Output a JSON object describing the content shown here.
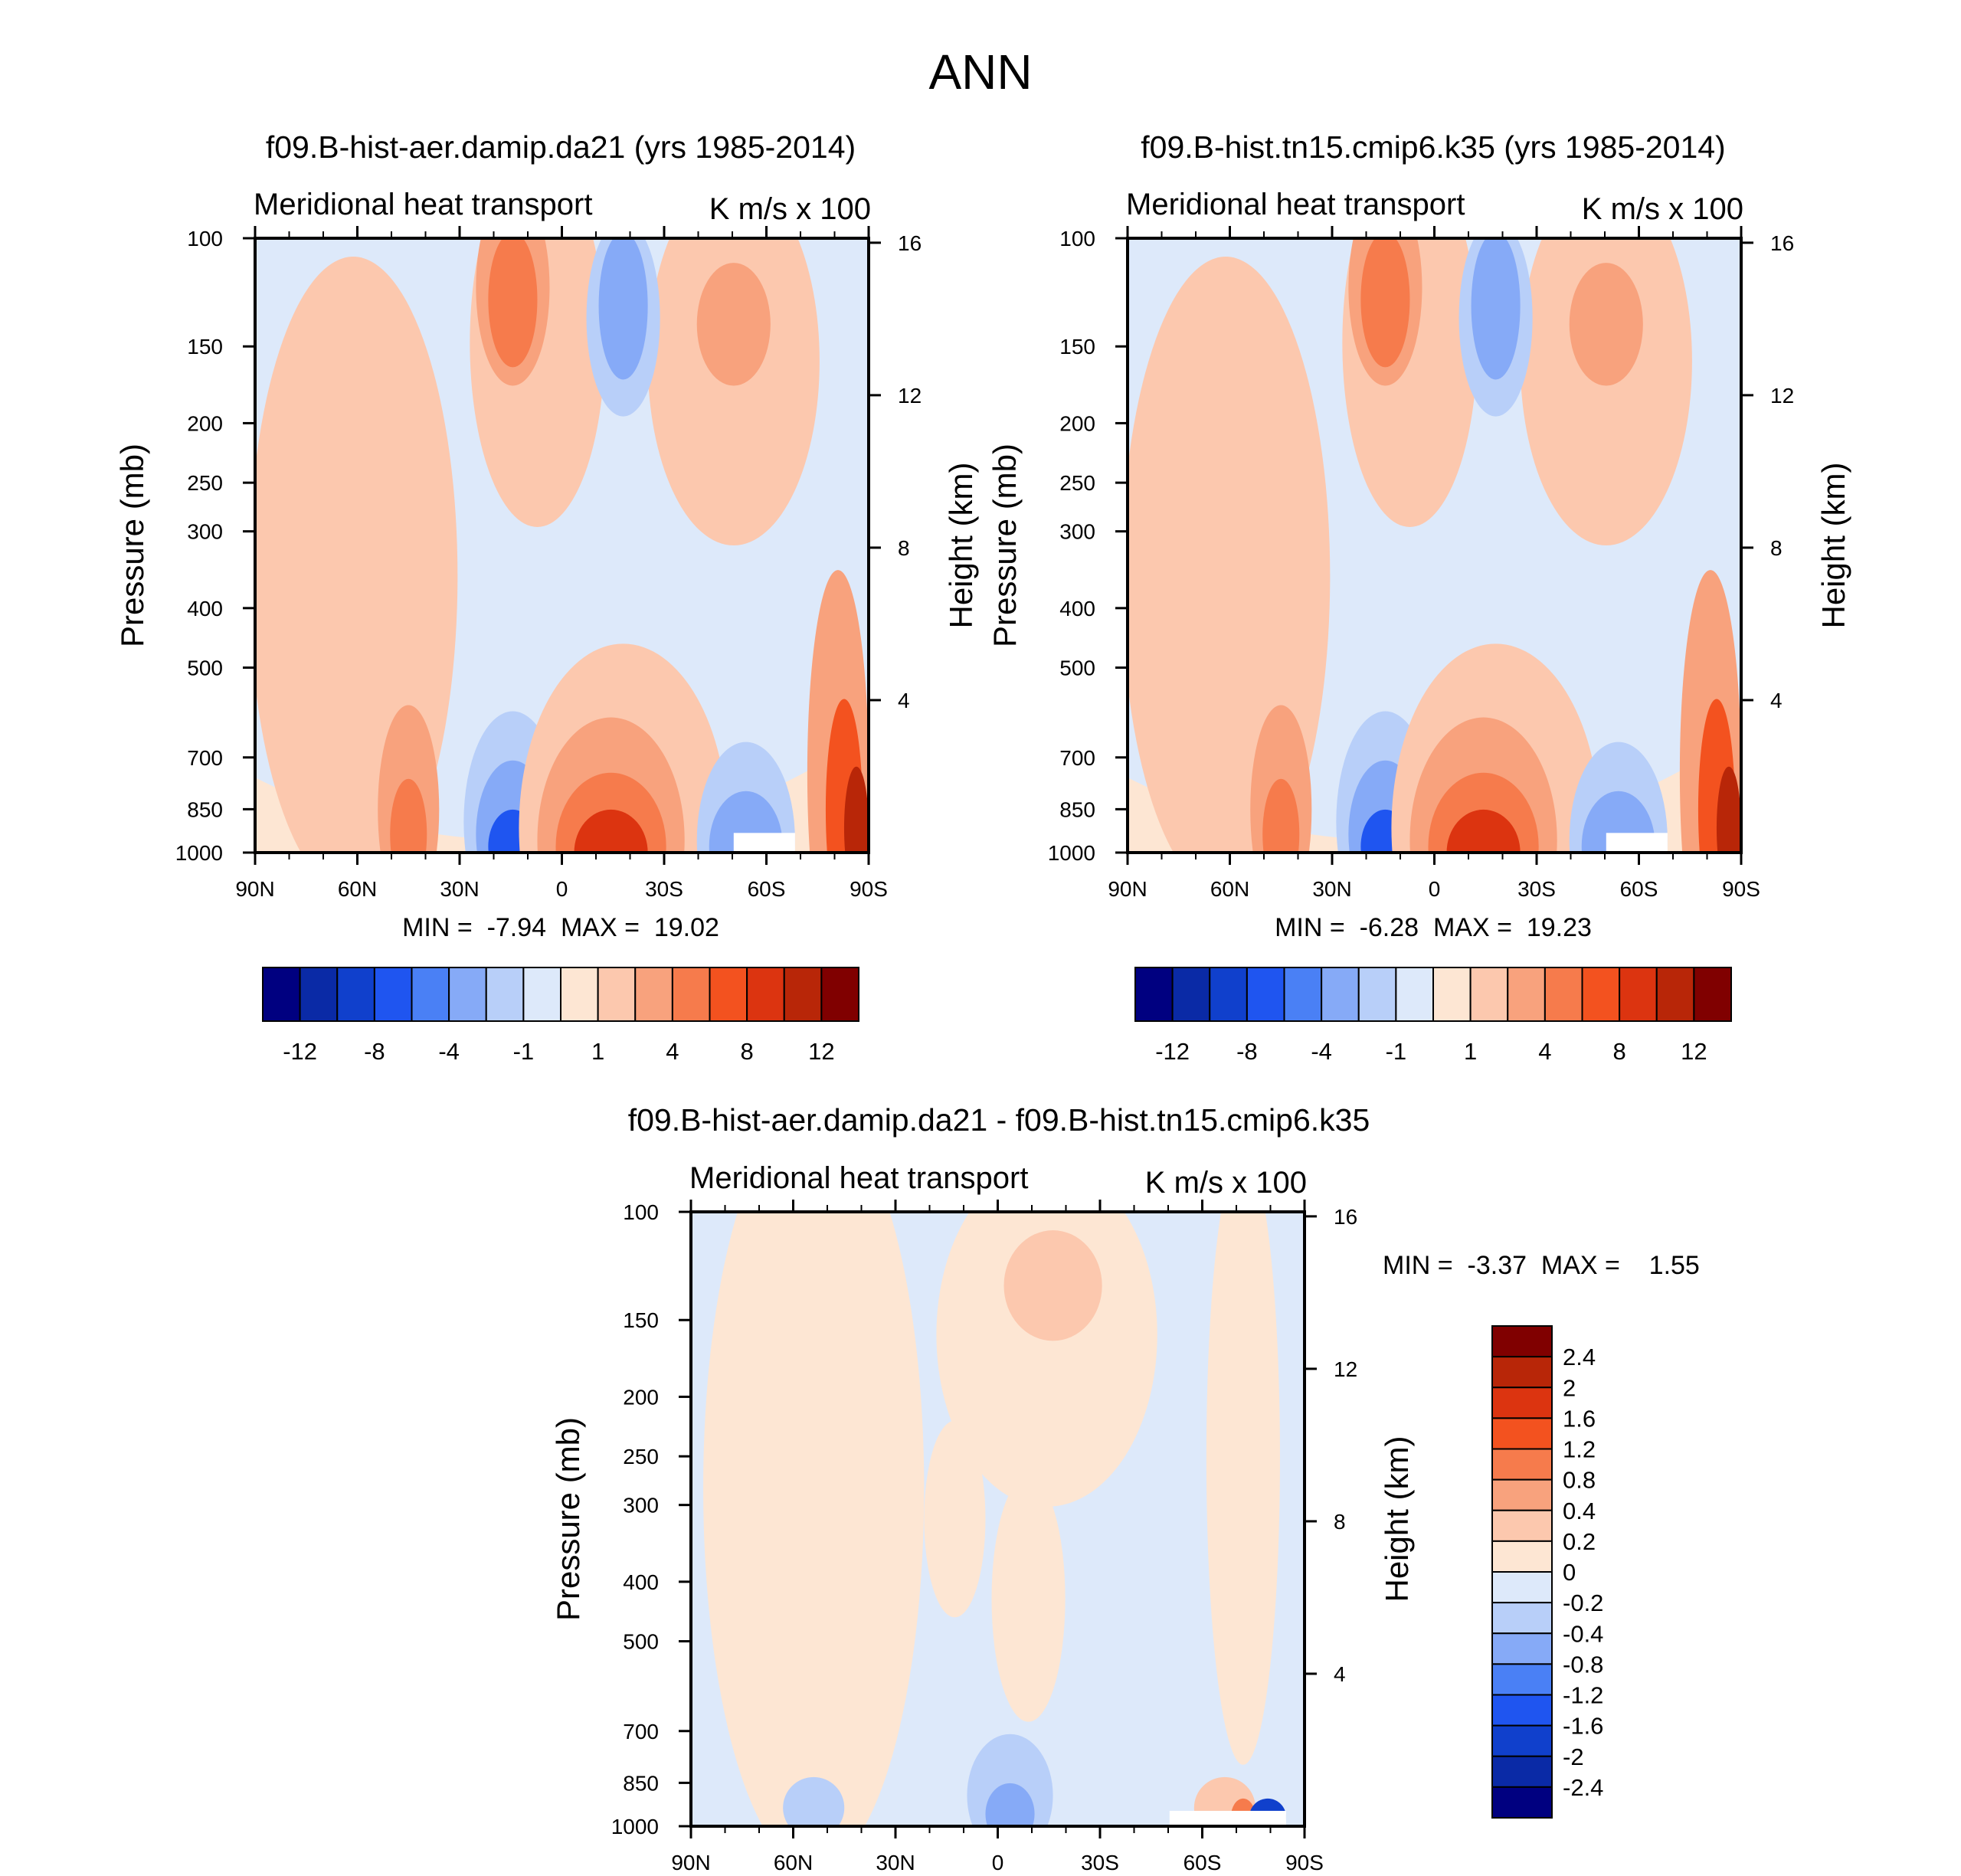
{
  "figure_title": "ANN",
  "colors": {
    "full_palette": [
      "#000080",
      "#0a2aa6",
      "#1040cc",
      "#1f55f0",
      "#4a80f5",
      "#86aaf7",
      "#b8cff9",
      "#dde9fa",
      "#fde6d3",
      "#fcc8ae",
      "#f8a27d",
      "#f67b4c",
      "#f3521f",
      "#dc3410",
      "#b82608",
      "#800000"
    ],
    "diff_palette": [
      "#000080",
      "#0a2aa6",
      "#1040cc",
      "#1f55f0",
      "#4a80f5",
      "#86aaf7",
      "#b8cff9",
      "#dde9fa",
      "#fde6d3",
      "#fcc8ae",
      "#f8a27d",
      "#f67b4c",
      "#f3521f",
      "#dc3410",
      "#b82608",
      "#800000"
    ]
  },
  "chart_data": [
    {
      "type": "contour",
      "title": "f09.B-hist-aer.damip.da21 (yrs 1985-2014)",
      "left_string": "Meridional heat transport",
      "right_string": "K m/s x 100",
      "xlabel": "",
      "ylabel": "Pressure (mb)",
      "ylabel_right": "Height (km)",
      "x_ticks": [
        "90N",
        "60N",
        "30N",
        "0",
        "30S",
        "60S",
        "90S"
      ],
      "x_range": [
        90,
        -90
      ],
      "y_ticks": [
        "100",
        "150",
        "200",
        "250",
        "300",
        "400",
        "500",
        "700",
        "850",
        "1000"
      ],
      "y_range_mb": [
        100,
        1000
      ],
      "height_ticks": [
        "16",
        "12",
        "8",
        "4"
      ],
      "min_label": "MIN =  -7.94",
      "max_label": "MAX =  19.02",
      "min": -7.94,
      "max": 19.02,
      "colorbar_levels": [
        -14,
        -12,
        -10,
        -8,
        -6,
        -4,
        -2,
        -1,
        0,
        1,
        2,
        4,
        6,
        8,
        10,
        12,
        14
      ],
      "colorbar_labels": [
        "-12",
        "-8",
        "-4",
        "-1",
        "1",
        "4",
        "8",
        "12"
      ]
    },
    {
      "type": "contour",
      "title": "f09.B-hist.tn15.cmip6.k35 (yrs 1985-2014)",
      "left_string": "Meridional heat transport",
      "right_string": "K m/s x 100",
      "xlabel": "",
      "ylabel": "Pressure (mb)",
      "ylabel_right": "Height (km)",
      "x_ticks": [
        "90N",
        "60N",
        "30N",
        "0",
        "30S",
        "60S",
        "90S"
      ],
      "x_range": [
        90,
        -90
      ],
      "y_ticks": [
        "100",
        "150",
        "200",
        "250",
        "300",
        "400",
        "500",
        "700",
        "850",
        "1000"
      ],
      "y_range_mb": [
        100,
        1000
      ],
      "height_ticks": [
        "16",
        "12",
        "8",
        "4"
      ],
      "min_label": "MIN =  -6.28",
      "max_label": "MAX =  19.23",
      "min": -6.28,
      "max": 19.23,
      "colorbar_levels": [
        -14,
        -12,
        -10,
        -8,
        -6,
        -4,
        -2,
        -1,
        0,
        1,
        2,
        4,
        6,
        8,
        10,
        12,
        14
      ],
      "colorbar_labels": [
        "-12",
        "-8",
        "-4",
        "-1",
        "1",
        "4",
        "8",
        "12"
      ]
    },
    {
      "type": "contour",
      "title": "f09.B-hist-aer.damip.da21 - f09.B-hist.tn15.cmip6.k35",
      "left_string": "Meridional heat transport",
      "right_string": "K m/s x 100",
      "xlabel": "",
      "ylabel": "Pressure (mb)",
      "ylabel_right": "Height (km)",
      "x_ticks": [
        "90N",
        "60N",
        "30N",
        "0",
        "30S",
        "60S",
        "90S"
      ],
      "x_range": [
        90,
        -90
      ],
      "y_ticks": [
        "100",
        "150",
        "200",
        "250",
        "300",
        "400",
        "500",
        "700",
        "850",
        "1000"
      ],
      "y_range_mb": [
        100,
        1000
      ],
      "height_ticks": [
        "16",
        "12",
        "8",
        "4"
      ],
      "min_label": "MIN =  -3.37",
      "max_label": "MAX =    1.55",
      "min": -3.37,
      "max": 1.55,
      "colorbar_labels": [
        "2.4",
        "2",
        "1.6",
        "1.2",
        "0.8",
        "0.4",
        "0.2",
        "0",
        "-0.2",
        "-0.4",
        "-0.8",
        "-1.2",
        "-1.6",
        "-2",
        "-2.4"
      ]
    }
  ]
}
